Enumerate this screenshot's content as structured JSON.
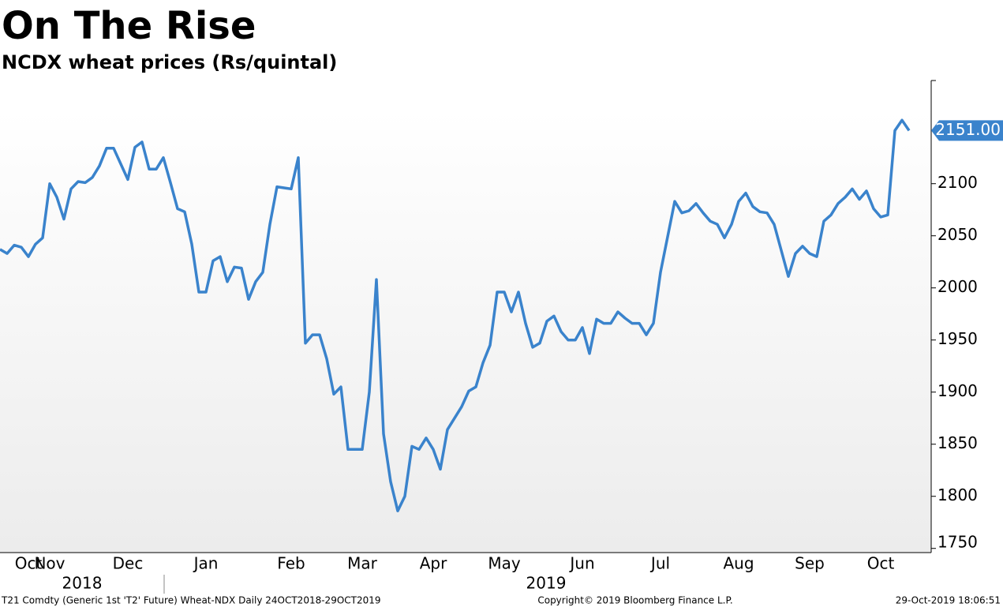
{
  "chart_data": {
    "type": "line",
    "title": "On The Rise",
    "subtitle": "NCDX wheat prices (Rs/quintal)",
    "categories": [
      null,
      null,
      null,
      null,
      "Oct",
      null,
      null,
      "Nov",
      null,
      null,
      null,
      null,
      null,
      null,
      null,
      null,
      null,
      null,
      "Dec",
      null,
      null,
      null,
      null,
      null,
      null,
      null,
      null,
      null,
      null,
      "Jan",
      null,
      null,
      null,
      null,
      null,
      null,
      null,
      null,
      null,
      null,
      null,
      "Feb",
      null,
      null,
      null,
      null,
      null,
      null,
      null,
      null,
      null,
      "Mar",
      null,
      null,
      null,
      null,
      null,
      null,
      null,
      null,
      null,
      "Apr",
      null,
      null,
      null,
      null,
      null,
      null,
      null,
      null,
      null,
      "May",
      null,
      null,
      null,
      null,
      null,
      null,
      null,
      null,
      null,
      null,
      "Jun",
      null,
      null,
      null,
      null,
      null,
      null,
      null,
      null,
      null,
      null,
      "Jul",
      null,
      null,
      null,
      null,
      null,
      null,
      null,
      null,
      null,
      null,
      "Aug",
      null,
      null,
      null,
      null,
      null,
      null,
      null,
      null,
      null,
      "Sep",
      null,
      null,
      null,
      null,
      null,
      null,
      null,
      null,
      null,
      "Oct",
      null,
      null,
      null,
      null
    ],
    "values": [
      2037,
      2033,
      2041,
      2039,
      2030,
      2042,
      2048,
      2100,
      2087,
      2066,
      2095,
      2102,
      2101,
      2106,
      2117,
      2134,
      2134,
      2119,
      2104,
      2135,
      2140,
      2114,
      2114,
      2125,
      2101,
      2076,
      2073,
      2042,
      1996,
      1996,
      2026,
      2030,
      2006,
      2020,
      2019,
      1989,
      2006,
      2015,
      2061,
      2097,
      2096,
      2095,
      2125,
      1947,
      1955,
      1955,
      1932,
      1898,
      1905,
      1845,
      1845,
      1845,
      1900,
      2008,
      1860,
      1814,
      1786,
      1800,
      1848,
      1845,
      1856,
      1845,
      1826,
      1864,
      1875,
      1886,
      1901,
      1905,
      1928,
      1945,
      1996,
      1996,
      1977,
      1996,
      1966,
      1943,
      1947,
      1968,
      1973,
      1958,
      1950,
      1950,
      1962,
      1937,
      1970,
      1966,
      1966,
      1977,
      1971,
      1966,
      1966,
      1955,
      1966,
      2015,
      2049,
      2083,
      2072,
      2074,
      2081,
      2072,
      2064,
      2061,
      2048,
      2061,
      2083,
      2091,
      2078,
      2073,
      2072,
      2061,
      2036,
      2011,
      2033,
      2040,
      2033,
      2030,
      2064,
      2070,
      2081,
      2087,
      2095,
      2085,
      2093,
      2076,
      2068,
      2070,
      2151,
      2161,
      2151
    ],
    "value_labels": [
      null,
      null,
      null,
      null,
      null,
      null,
      null,
      null,
      null,
      null,
      null,
      null,
      null,
      null,
      null,
      null,
      null,
      null,
      null,
      null,
      null,
      null,
      null,
      null,
      null,
      null,
      null,
      null,
      null,
      null,
      null,
      null,
      null,
      null,
      null,
      null,
      null,
      null,
      null,
      null,
      null,
      null,
      null,
      null,
      null,
      null,
      null,
      null,
      null,
      null,
      null,
      null,
      null,
      null,
      null,
      null,
      null,
      null,
      null,
      null,
      null,
      null,
      null,
      null,
      null,
      null,
      null,
      null,
      null,
      null,
      null,
      null,
      null,
      null,
      null,
      null,
      null,
      null,
      null,
      null,
      null,
      null,
      null,
      null,
      null,
      null,
      null,
      null,
      null,
      null,
      null,
      null,
      null,
      null,
      null,
      null,
      null,
      null,
      null,
      null,
      null,
      null,
      null,
      null,
      null,
      null,
      null,
      null,
      null,
      null,
      null,
      null,
      null,
      null,
      null,
      null,
      null,
      null,
      null,
      null,
      null,
      null,
      null,
      null,
      null,
      null,
      null,
      null,
      "2151.00"
    ],
    "years": [
      "2018",
      "2019"
    ],
    "color": "#3a83cc",
    "ylim": [
      1746,
      2199
    ],
    "yticks": [
      1750,
      1800,
      1850,
      1900,
      1950,
      2000,
      2050,
      2100
    ]
  },
  "footer": {
    "source": "T21 Comdty (Generic 1st 'T2' Future) Wheat-NDX  Daily 24OCT2018-29OCT2019",
    "copyright": "Copyright© 2019 Bloomberg Finance L.P.",
    "timestamp": "29-Oct-2019 18:06:51"
  }
}
